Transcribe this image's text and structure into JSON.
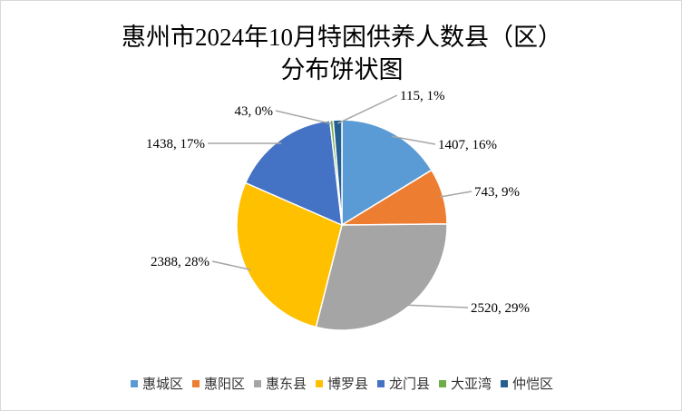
{
  "chart_data": {
    "type": "pie",
    "title_line1": "惠州市2024年10月特困供养人数县（区）",
    "title_line2": "分布饼状图",
    "categories": [
      "惠城区",
      "惠阳区",
      "惠东县",
      "博罗县",
      "龙门县",
      "大亚湾",
      "仲恺区"
    ],
    "values": [
      1407,
      743,
      2520,
      2388,
      1438,
      43,
      115
    ],
    "percents": [
      16,
      9,
      29,
      28,
      17,
      0,
      1
    ],
    "data_labels": [
      "1407, 16%",
      "743, 9%",
      "2520, 29%",
      "2388, 28%",
      "1438, 17%",
      "43, 0%",
      "115, 1%"
    ],
    "colors": [
      "#5B9BD5",
      "#ED7D31",
      "#A5A5A5",
      "#FFC000",
      "#4472C4",
      "#70AD47",
      "#255E91"
    ],
    "start_angle": "12 o'clock, clockwise",
    "legend_position": "bottom"
  }
}
